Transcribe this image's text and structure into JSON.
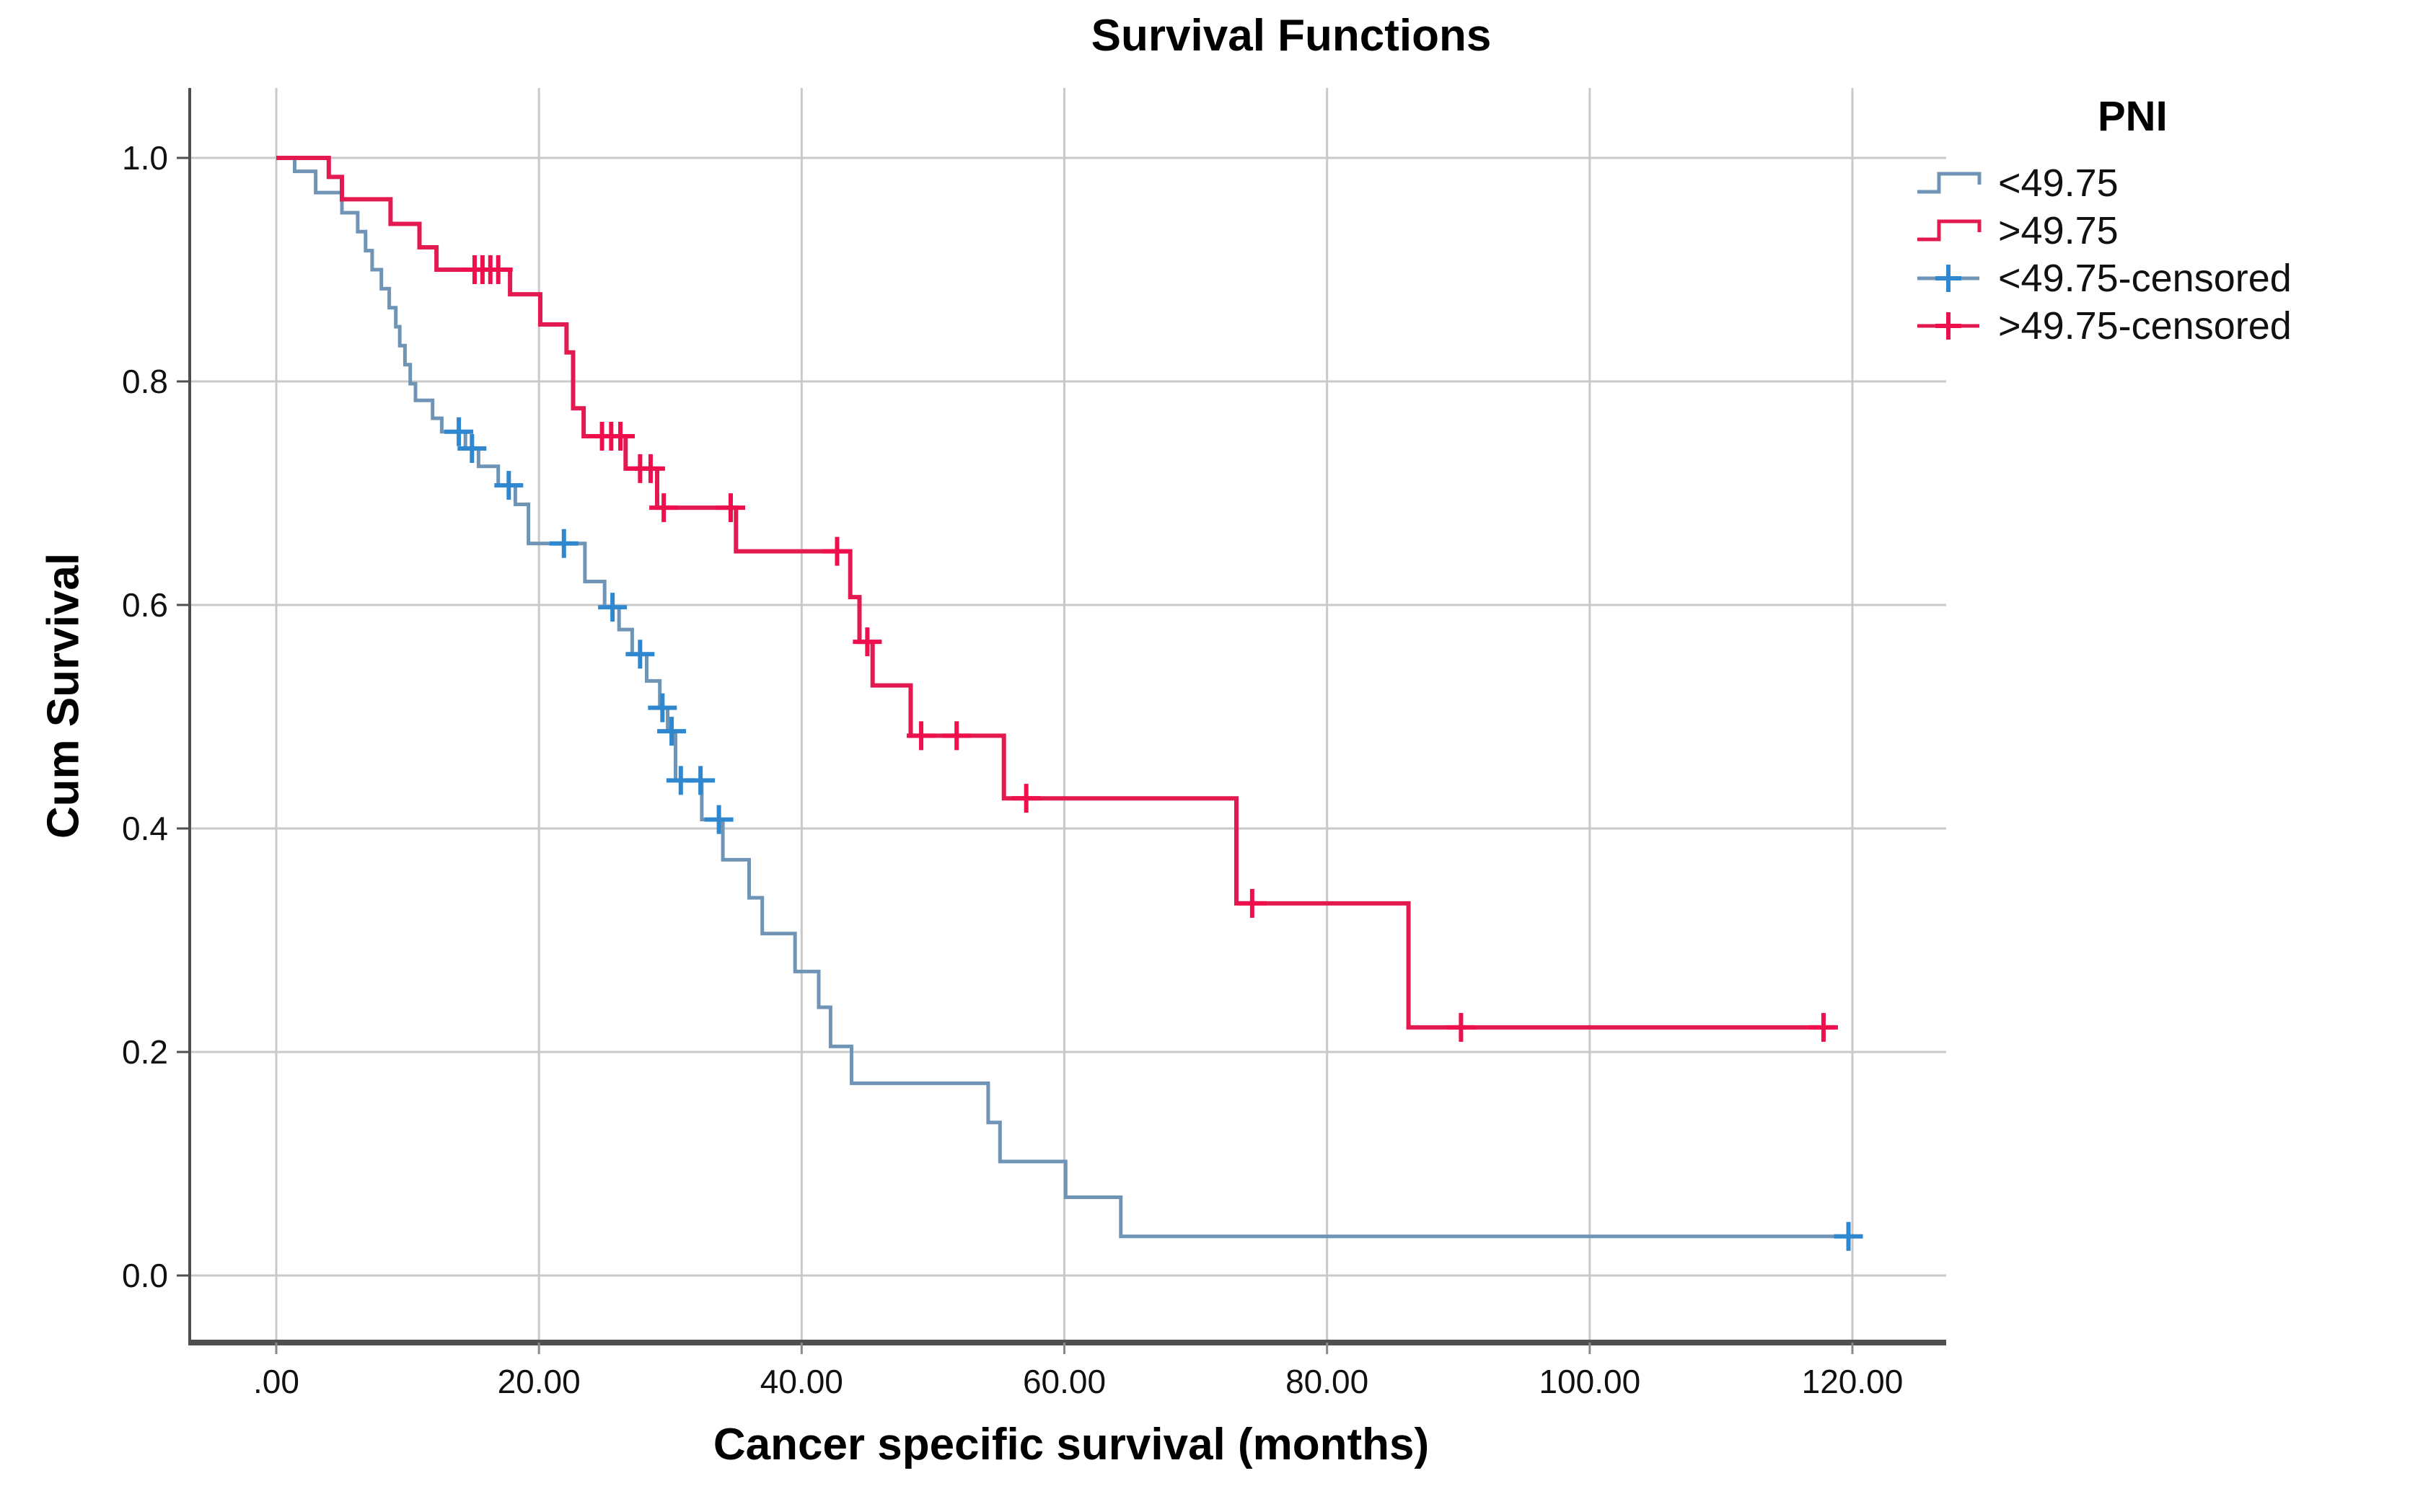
{
  "figure": {
    "title": "Survival Functions",
    "x_axis": {
      "label": "Cancer specific survival (months)"
    },
    "y_axis": {
      "label": "Cum Survival"
    },
    "legend": {
      "title": "PNI",
      "items": [
        {
          "label": "<49.75",
          "type": "step-line",
          "color": "#6f94b5"
        },
        {
          "label": ">49.75",
          "type": "step-line",
          "color": "#e31a50"
        },
        {
          "label": "<49.75-censored",
          "type": "censor-mark",
          "color": "#6f94b5",
          "mark_color": "#2f87cf"
        },
        {
          "label": ">49.75-censored",
          "type": "censor-mark",
          "color": "#e31a50",
          "mark_color": "#ee0f4d"
        }
      ]
    }
  },
  "chart_data": {
    "type": "line",
    "subtype": "kaplan_meier_step",
    "title": "Survival Functions",
    "xlabel": "Cancer specific survival (months)",
    "ylabel": "Cum Survival",
    "xlim": [
      0,
      120
    ],
    "ylim": [
      0.0,
      1.0
    ],
    "grid": true,
    "legend_position": "top-right",
    "x_ticks": {
      "values": [
        0,
        20,
        40,
        60,
        80,
        100,
        120
      ],
      "labels": [
        ".00",
        "20.00",
        "40.00",
        "60.00",
        "80.00",
        "100.00",
        "120.00"
      ]
    },
    "y_ticks": {
      "values": [
        0.0,
        0.2,
        0.4,
        0.6,
        0.8,
        1.0
      ],
      "labels": [
        "0.0",
        "0.2",
        "0.4",
        "0.6",
        "0.8",
        "1.0"
      ]
    },
    "series": [
      {
        "id": "pni-low",
        "name": "<49.75",
        "group": "PNI <49.75",
        "color": "#6f94b5",
        "censor_color": "#2f87cf",
        "line_width": 5,
        "end_x": 120.3,
        "steps": [
          [
            0,
            1.0
          ],
          [
            1.4,
            0.988
          ],
          [
            3,
            0.969
          ],
          [
            5,
            0.951
          ],
          [
            6.2,
            0.934
          ],
          [
            6.8,
            0.917
          ],
          [
            7.3,
            0.9
          ],
          [
            8,
            0.883
          ],
          [
            8.6,
            0.866
          ],
          [
            9.1,
            0.849
          ],
          [
            9.4,
            0.832
          ],
          [
            9.8,
            0.815
          ],
          [
            10.2,
            0.798
          ],
          [
            10.6,
            0.783
          ],
          [
            11.9,
            0.767
          ],
          [
            12.6,
            0.755
          ],
          [
            14.4,
            0.74
          ],
          [
            15.4,
            0.724
          ],
          [
            16.9,
            0.707
          ],
          [
            18.2,
            0.69
          ],
          [
            19.2,
            0.655
          ],
          [
            23.5,
            0.621
          ],
          [
            25,
            0.598
          ],
          [
            26.1,
            0.578
          ],
          [
            27.1,
            0.556
          ],
          [
            28.2,
            0.532
          ],
          [
            29.2,
            0.508
          ],
          [
            29.8,
            0.487
          ],
          [
            30.4,
            0.443
          ],
          [
            32.4,
            0.408
          ],
          [
            34,
            0.372
          ],
          [
            36,
            0.338
          ],
          [
            37,
            0.306
          ],
          [
            39.5,
            0.272
          ],
          [
            41.3,
            0.24
          ],
          [
            42.2,
            0.205
          ],
          [
            43.8,
            0.172
          ],
          [
            54.2,
            0.137
          ],
          [
            55.1,
            0.102
          ],
          [
            60.1,
            0.07
          ],
          [
            64.3,
            0.035
          ]
        ],
        "censored": [
          [
            13.9,
            0.755
          ],
          [
            14.9,
            0.74
          ],
          [
            17.7,
            0.707
          ],
          [
            21.9,
            0.655
          ],
          [
            25.6,
            0.598
          ],
          [
            27.7,
            0.556
          ],
          [
            29.4,
            0.508
          ],
          [
            30.1,
            0.487
          ],
          [
            30.8,
            0.443
          ],
          [
            32.3,
            0.443
          ],
          [
            33.7,
            0.408
          ],
          [
            119.7,
            0.035
          ]
        ]
      },
      {
        "id": "pni-high",
        "name": ">49.75",
        "group": "PNI >49.75",
        "color": "#e31a50",
        "censor_color": "#ee0f4d",
        "line_width": 6,
        "end_x": 118.6,
        "steps": [
          [
            0,
            1.0
          ],
          [
            4,
            0.983
          ],
          [
            5,
            0.963
          ],
          [
            8.7,
            0.941
          ],
          [
            10.9,
            0.92
          ],
          [
            12.2,
            0.9
          ],
          [
            17.8,
            0.878
          ],
          [
            20.1,
            0.851
          ],
          [
            22.1,
            0.826
          ],
          [
            22.6,
            0.776
          ],
          [
            23.4,
            0.751
          ],
          [
            26.6,
            0.722
          ],
          [
            29,
            0.687
          ],
          [
            35,
            0.648
          ],
          [
            43.7,
            0.607
          ],
          [
            44.4,
            0.567
          ],
          [
            45.4,
            0.528
          ],
          [
            48.3,
            0.483
          ],
          [
            55.4,
            0.427
          ],
          [
            73.1,
            0.333
          ],
          [
            86.2,
            0.222
          ]
        ],
        "censored": [
          [
            15.1,
            0.9
          ],
          [
            15.7,
            0.9
          ],
          [
            16.3,
            0.9
          ],
          [
            16.9,
            0.9
          ],
          [
            24.8,
            0.751
          ],
          [
            25.5,
            0.751
          ],
          [
            26.2,
            0.751
          ],
          [
            27.7,
            0.722
          ],
          [
            28.5,
            0.722
          ],
          [
            29.5,
            0.687
          ],
          [
            34.6,
            0.687
          ],
          [
            42.7,
            0.648
          ],
          [
            45,
            0.567
          ],
          [
            49.1,
            0.483
          ],
          [
            51.8,
            0.483
          ],
          [
            57.1,
            0.427
          ],
          [
            74.3,
            0.333
          ],
          [
            90.2,
            0.222
          ],
          [
            117.8,
            0.222
          ]
        ]
      }
    ],
    "plot_style": {
      "grid_color": "#c9c9c9",
      "axis_color": "#4f4f4f",
      "tick_label_color": "#111111",
      "background": "#ffffff"
    }
  }
}
